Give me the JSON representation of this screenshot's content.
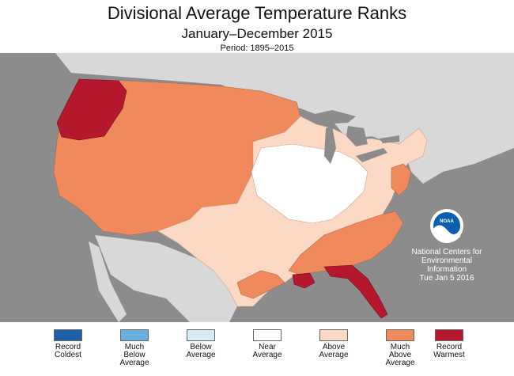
{
  "header": {
    "title": "Divisional Average Temperature Ranks",
    "subtitle": "January–December 2015",
    "period": "Period: 1895–2015"
  },
  "colors": {
    "ocean": "#8c8c8c",
    "land_outside": "#d8d8d8",
    "lakes": "#8c8c8c",
    "record_coldest": "#1f5fa8",
    "much_below": "#6aaedb",
    "below": "#d7eaf5",
    "near": "#ffffff",
    "above": "#fcd9c5",
    "much_above": "#f08a5d",
    "record_warmest": "#b5182c"
  },
  "logo": {
    "text": "NOAA"
  },
  "credit": {
    "line1": "National Centers for",
    "line2": "Environmental",
    "line3": "Information",
    "date": "Tue Jan  5 2016"
  },
  "legend": [
    {
      "line1": "Record",
      "line2": "Coldest",
      "line3": "",
      "color": "#1f5fa8"
    },
    {
      "line1": "Much",
      "line2": "Below",
      "line3": "Average",
      "color": "#6aaedb"
    },
    {
      "line1": "Below",
      "line2": "Average",
      "line3": "",
      "color": "#d7eaf5"
    },
    {
      "line1": "Near",
      "line2": "Average",
      "line3": "",
      "color": "#ffffff"
    },
    {
      "line1": "Above",
      "line2": "Average",
      "line3": "",
      "color": "#fcd9c5"
    },
    {
      "line1": "Much",
      "line2": "Above",
      "line3": "Average",
      "color": "#f08a5d"
    },
    {
      "line1": "Record",
      "line2": "Warmest",
      "line3": "",
      "color": "#b5182c"
    }
  ]
}
